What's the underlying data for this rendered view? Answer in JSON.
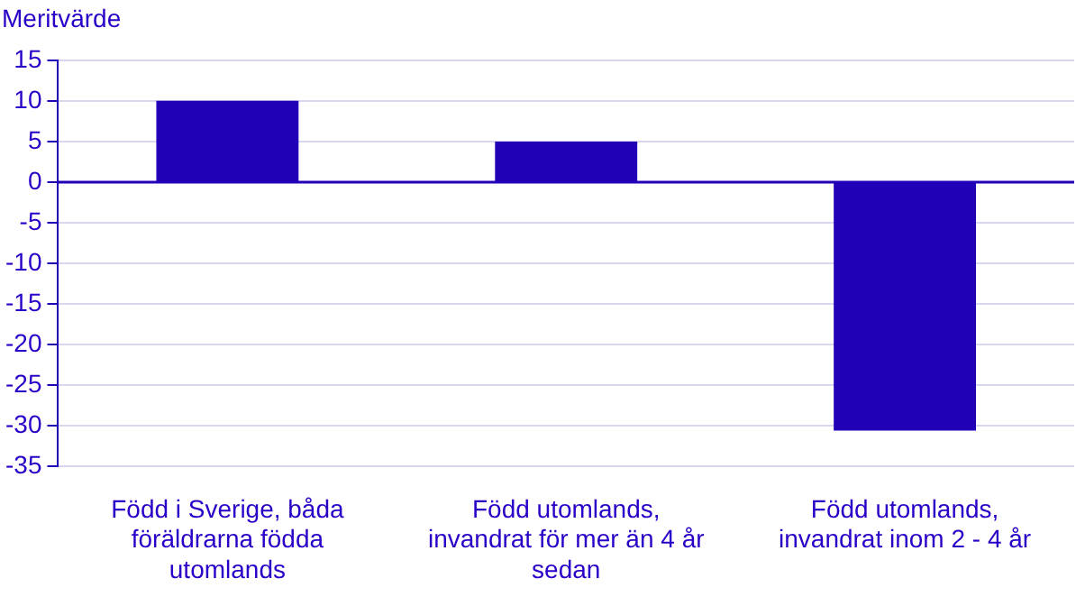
{
  "chart_data": {
    "type": "bar",
    "ylabel": "Meritvärde",
    "categories": [
      "Född i Sverige, båda föräldrarna födda utomlands",
      "Född utomlands, invandrat för mer än 4 år sedan",
      "Född utomlands, invandrat inom 2 - 4 år"
    ],
    "values": [
      10,
      5,
      -30.6
    ],
    "color": "#2200b8",
    "ylim": [
      -35,
      15
    ],
    "yticks": [
      -35,
      -30,
      -25,
      -20,
      -15,
      -10,
      -5,
      0,
      5,
      10,
      15
    ],
    "grid": "y",
    "legend": false,
    "ref_lines": [
      {
        "axis": "y",
        "value": 0,
        "color": "#2200b8"
      }
    ]
  }
}
